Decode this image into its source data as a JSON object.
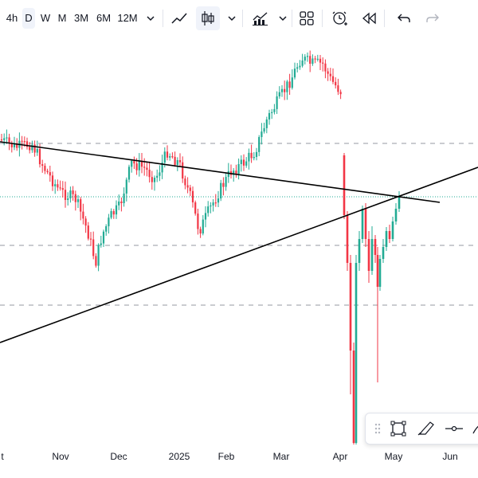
{
  "toolbar": {
    "timeframes": [
      "4h",
      "D",
      "W",
      "M",
      "3M",
      "6M",
      "12M"
    ],
    "active_timeframe": "D",
    "icons": [
      "chevron-down-icon",
      "line-chart-icon",
      "candlestick-icon",
      "chevron-down-icon",
      "indicators-icon",
      "chevron-down-icon",
      "layout-grid-icon",
      "alert-clock-icon",
      "replay-icon",
      "undo-icon",
      "redo-icon"
    ]
  },
  "xaxis": {
    "labels": [
      "t",
      "Nov",
      "Dec",
      "2025",
      "Feb",
      "Mar",
      "Apr",
      "May",
      "Jun"
    ]
  },
  "drawing_toolbar": {
    "icons": [
      "drag-handle-icon",
      "select-box-icon",
      "brush-icon",
      "horizontal-line-icon",
      "more-icon"
    ]
  },
  "colors": {
    "up": "#22ab94",
    "down": "#f23645",
    "trendline": "#000000",
    "dashed": "#9598a1",
    "dotted": "#22ab94"
  },
  "chart_data": {
    "type": "candlestick",
    "x_labels": [
      "Nov",
      "Dec",
      "2025",
      "Feb",
      "Mar",
      "Apr",
      "May",
      "Jun"
    ],
    "price_series_closes": [
      60,
      62,
      61,
      58,
      55,
      57,
      54,
      52,
      53,
      50,
      48,
      47,
      50,
      46,
      44,
      42,
      40,
      38,
      35,
      33,
      34,
      36,
      38,
      37,
      40,
      42,
      44,
      43,
      46,
      48,
      47,
      49,
      51,
      50,
      52,
      51,
      49,
      48,
      46,
      44,
      42,
      40,
      38,
      36,
      39,
      41,
      43,
      45,
      47,
      49,
      52,
      55,
      58,
      62,
      66,
      70,
      74,
      78,
      82,
      85,
      88,
      90,
      87,
      84,
      80,
      70,
      45,
      20,
      5,
      15,
      25,
      35,
      42,
      48,
      46,
      44,
      47,
      50,
      52,
      55,
      56
    ],
    "wick_notes": "Large April capitulation wick to chart bottom; recovery into May toward trendline intersection",
    "horizontal_levels": [
      "dashed-upper",
      "dotted-mid",
      "dashed-lower-1",
      "dashed-lower-2"
    ],
    "trendlines": [
      "descending resistance",
      "ascending support"
    ]
  }
}
